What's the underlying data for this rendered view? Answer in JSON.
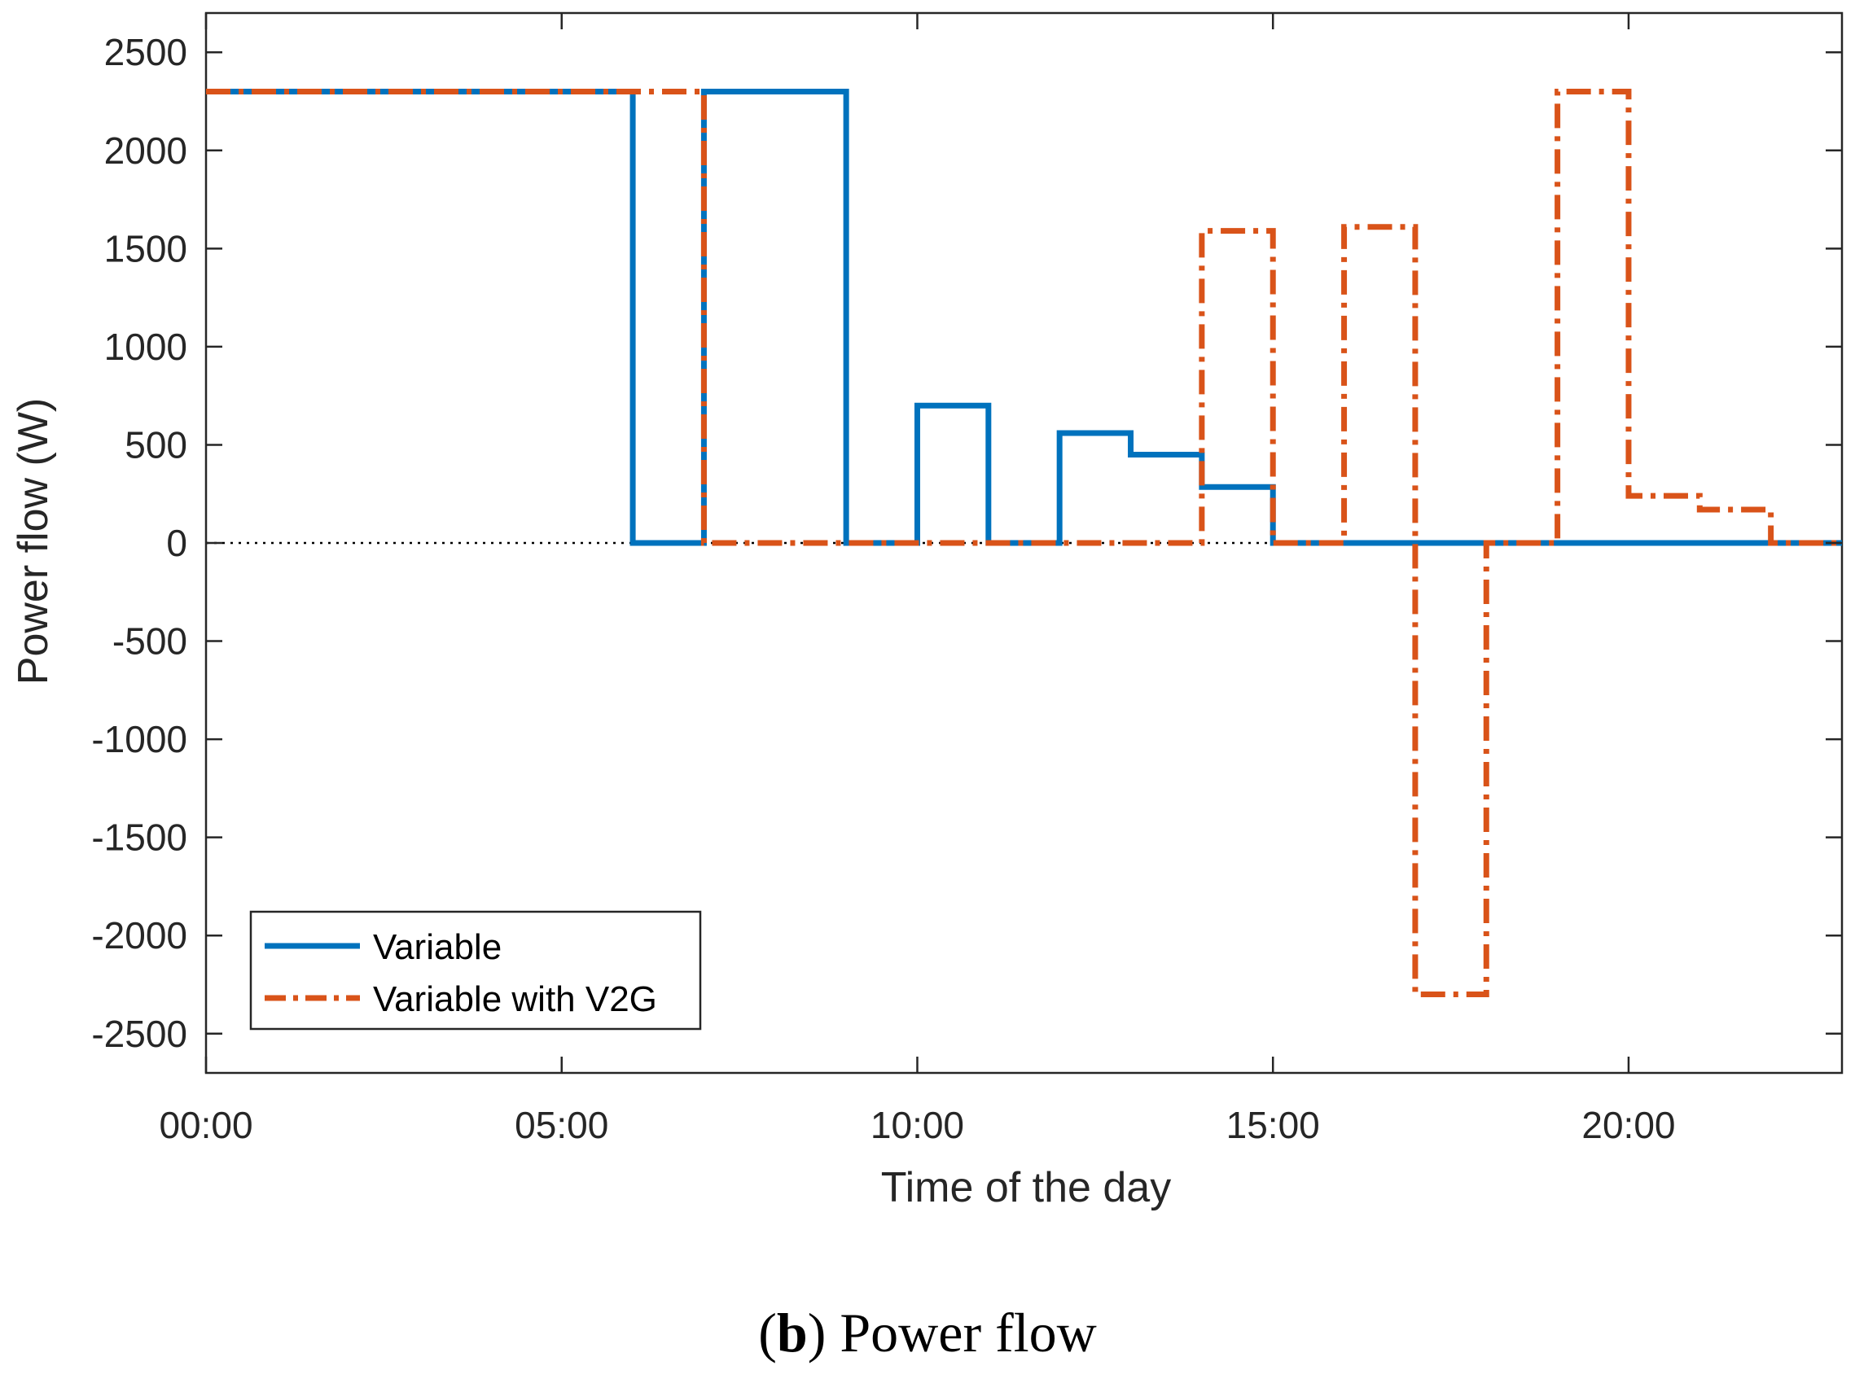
{
  "chart_data": {
    "type": "line",
    "step": true,
    "xlabel": "Time of the day",
    "ylabel": "Power flow (W)",
    "xlim": [
      0,
      23
    ],
    "ylim": [
      -2700,
      2700
    ],
    "x_ticks": [
      0,
      5,
      10,
      15,
      20
    ],
    "x_tick_labels": [
      "00:00",
      "05:00",
      "10:00",
      "15:00",
      "20:00"
    ],
    "y_ticks": [
      2500,
      2000,
      1500,
      1000,
      500,
      0,
      -500,
      -1000,
      -1500,
      -2000,
      -2500
    ],
    "y_tick_labels": [
      "2500",
      "2000",
      "1500",
      "1000",
      "500",
      "0",
      "-500",
      "-1000",
      "-1500",
      "-2000",
      "-2500"
    ],
    "zero_line": true,
    "legend_position": "bottom-left",
    "series": [
      {
        "name": "Variable",
        "color": "#0072BD",
        "style": "solid",
        "hours": [
          0,
          1,
          2,
          3,
          4,
          5,
          6,
          7,
          8,
          9,
          10,
          11,
          12,
          13,
          14,
          15,
          16,
          17,
          18,
          19,
          20,
          21,
          22,
          23
        ],
        "values": [
          2300,
          2300,
          2300,
          2300,
          2300,
          2300,
          0,
          2300,
          2300,
          0,
          700,
          0,
          560,
          450,
          285,
          0,
          0,
          0,
          0,
          0,
          0,
          0,
          0,
          0
        ]
      },
      {
        "name": "Variable with V2G",
        "color": "#D95319",
        "style": "dash-dot",
        "hours": [
          0,
          1,
          2,
          3,
          4,
          5,
          6,
          7,
          8,
          9,
          10,
          11,
          12,
          13,
          14,
          15,
          16,
          17,
          18,
          19,
          20,
          21,
          22,
          23
        ],
        "values": [
          2300,
          2300,
          2300,
          2300,
          2300,
          2300,
          2300,
          0,
          0,
          0,
          0,
          0,
          0,
          0,
          1590,
          0,
          1610,
          -2300,
          0,
          2300,
          240,
          170,
          0,
          0
        ]
      }
    ]
  },
  "caption": {
    "label": "b",
    "open_paren": "(",
    "close_paren": ")",
    "text": " Power flow"
  }
}
